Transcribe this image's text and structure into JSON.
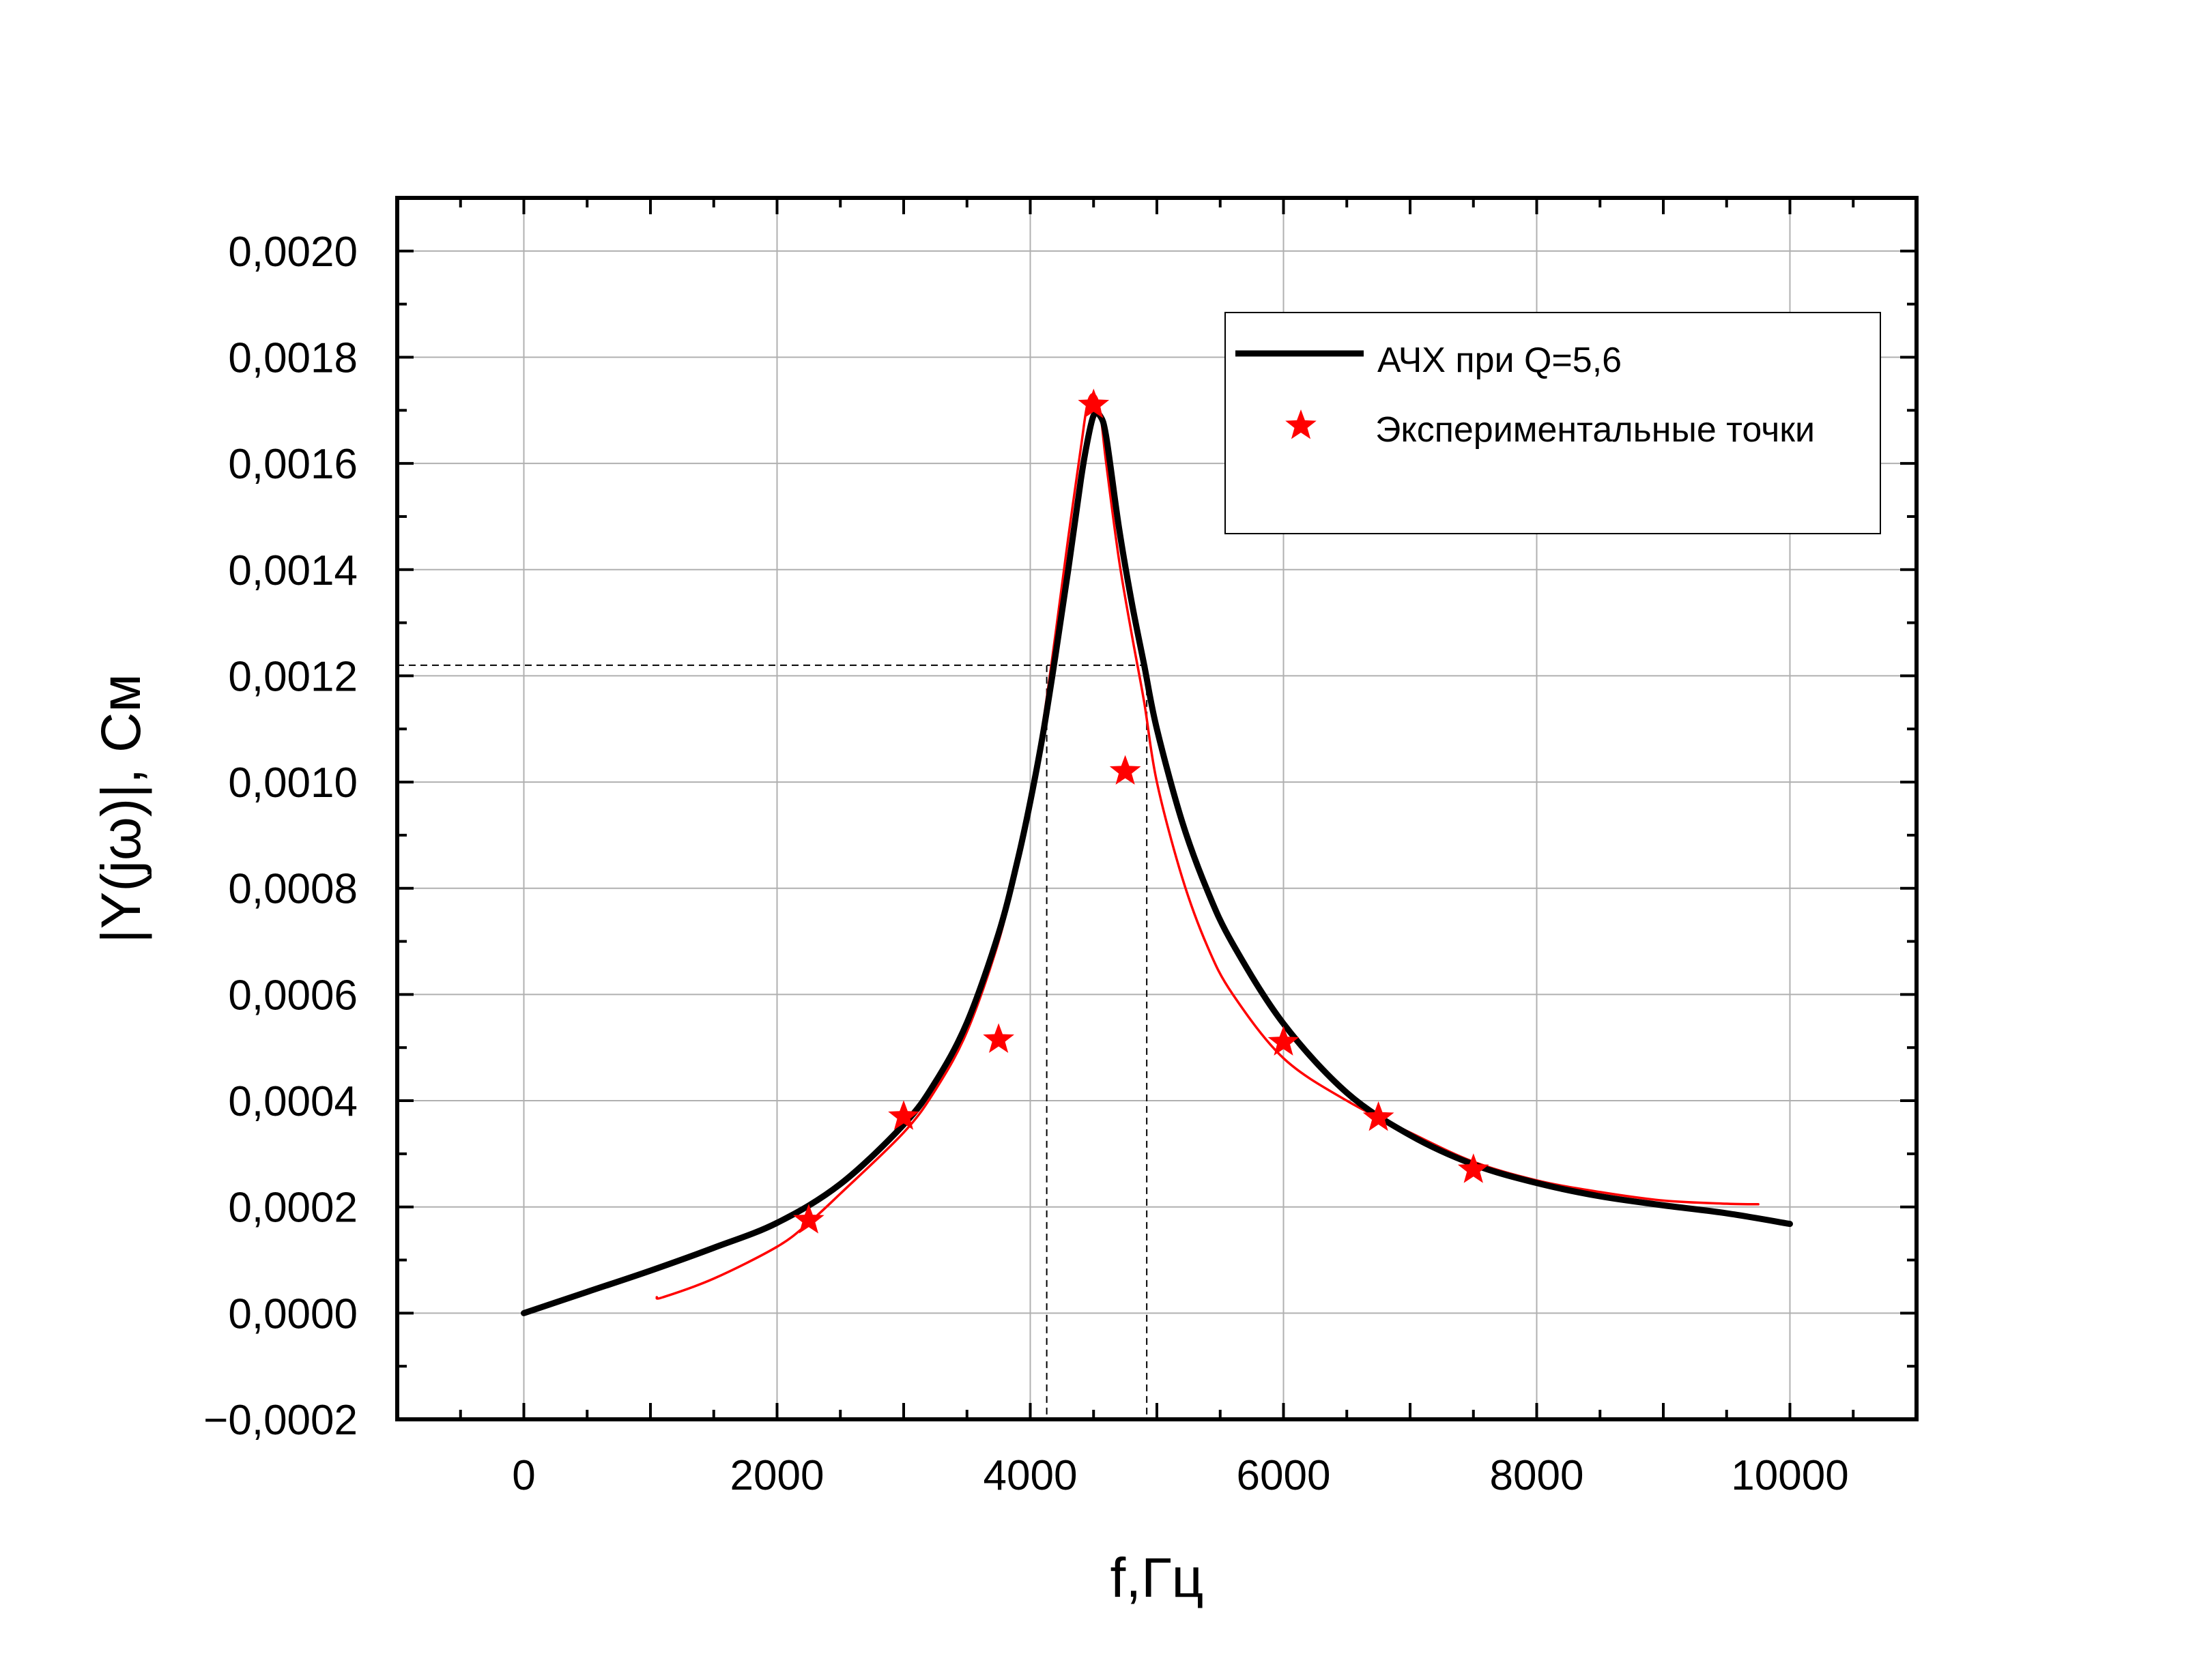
{
  "chart_data": {
    "type": "line",
    "xlabel": "f,Гц",
    "ylabel": "|Y(jω)|, См",
    "xlim": [
      -1000,
      11000
    ],
    "ylim": [
      -0.0002,
      0.0021
    ],
    "x_ticks": [
      0,
      2000,
      4000,
      6000,
      8000,
      10000
    ],
    "x_tick_labels": [
      "0",
      "2000",
      "4000",
      "6000",
      "8000",
      "10000"
    ],
    "y_ticks": [
      -0.0002,
      0,
      0.0002,
      0.0004,
      0.0006,
      0.0008,
      0.001,
      0.0012,
      0.0014,
      0.0016,
      0.0018,
      0.002
    ],
    "y_tick_labels": [
      "−0,0002",
      "0,0000",
      "0,0002",
      "0,0004",
      "0,0006",
      "0,0008",
      "0,0010",
      "0,0012",
      "0,0014",
      "0,0016",
      "0,0018",
      "0,0020"
    ],
    "grid": true,
    "legend_position": "top-right",
    "series": [
      {
        "name": "АЧХ при Q=5,6",
        "kind": "line",
        "color": "#000000",
        "x": [
          0,
          500,
          1000,
          1500,
          2000,
          2500,
          3000,
          3250,
          3500,
          3750,
          3900,
          4000,
          4100,
          4200,
          4300,
          4400,
          4450,
          4500,
          4550,
          4600,
          4700,
          4800,
          4900,
          5000,
          5200,
          5400,
          5600,
          6000,
          6500,
          7000,
          7500,
          8000,
          8500,
          9000,
          9500,
          10000
        ],
        "y": [
          0,
          4e-05,
          8e-05,
          0.000123,
          0.00017,
          0.000243,
          0.000355,
          0.000435,
          0.000547,
          0.000715,
          0.000853,
          0.000963,
          0.00109,
          0.00124,
          0.0014,
          0.00157,
          0.00164,
          0.00169,
          0.00169,
          0.00165,
          0.00148,
          0.00134,
          0.00122,
          0.0011,
          0.000925,
          0.000795,
          0.000695,
          0.000545,
          0.000415,
          0.000335,
          0.00028,
          0.000245,
          0.00022,
          0.000203,
          0.000188,
          0.000168
        ]
      },
      {
        "name": "",
        "kind": "line",
        "color": "#ff0000",
        "x": [
          1050,
          1100,
          1500,
          2000,
          2250,
          2500,
          3000,
          3250,
          3500,
          3750,
          3900,
          4000,
          4100,
          4200,
          4300,
          4400,
          4450,
          4500,
          4550,
          4600,
          4700,
          4800,
          4900,
          5000,
          5200,
          5400,
          5600,
          6000,
          6500,
          7000,
          7500,
          8000,
          8500,
          9000,
          9500,
          9750
        ],
        "y": [
          3e-05,
          3e-05,
          6.5e-05,
          0.000125,
          0.00017,
          0.000225,
          0.00034,
          0.00042,
          0.00053,
          0.0007,
          0.00085,
          0.000975,
          0.00111,
          0.00128,
          0.00146,
          0.00163,
          0.00171,
          0.00173,
          0.0017,
          0.0016,
          0.00142,
          0.00128,
          0.00115,
          0.001,
          0.00082,
          0.00069,
          0.0006,
          0.00048,
          0.0004,
          0.00034,
          0.000285,
          0.00025,
          0.000228,
          0.000212,
          0.000206,
          0.000205
        ]
      },
      {
        "name": "Экспериментальные точки",
        "kind": "scatter",
        "marker": "star",
        "color": "#ff0000",
        "x": [
          2250,
          3000,
          3750,
          4500,
          4750,
          6000,
          6750,
          7500
        ],
        "y": [
          0.000175,
          0.00037,
          0.000515,
          0.00171,
          0.00102,
          0.00051,
          0.000368,
          0.00027
        ]
      }
    ],
    "annotations": {
      "dashed_level_y": 0.00122,
      "dashed_band_x": [
        4130,
        4920
      ]
    }
  }
}
